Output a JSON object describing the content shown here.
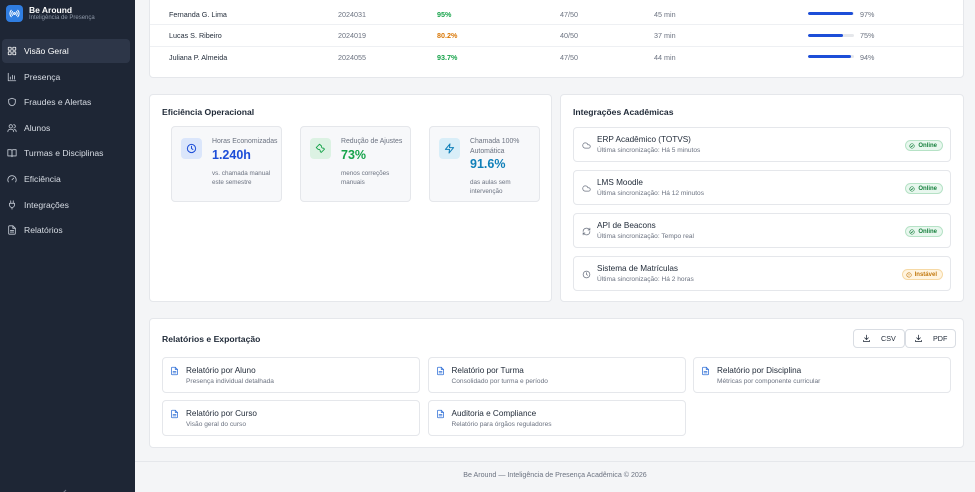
{
  "brand": {
    "name": "Be Around",
    "subtitle": "Inteligência de Presença"
  },
  "nav": [
    {
      "label": "Visão Geral",
      "icon": "grid-icon",
      "active": true
    },
    {
      "label": "Presença",
      "icon": "bar-chart-icon"
    },
    {
      "label": "Fraudes e Alertas",
      "icon": "shield-icon"
    },
    {
      "label": "Alunos",
      "icon": "users-icon"
    },
    {
      "label": "Turmas e Disciplinas",
      "icon": "book-icon"
    },
    {
      "label": "Eficiência",
      "icon": "gauge-icon"
    },
    {
      "label": "Integrações",
      "icon": "plug-icon"
    },
    {
      "label": "Relatórios",
      "icon": "file-icon"
    }
  ],
  "students": [
    {
      "name": "Fernanda G. Lima",
      "id": "2024031",
      "rate": "95%",
      "rate_color": "#16a34a",
      "attended": "47/50",
      "time": "45 min",
      "score": 0.97,
      "score_label": "97%"
    },
    {
      "name": "Lucas S. Ribeiro",
      "id": "2024019",
      "rate": "80.2%",
      "rate_color": "#d97706",
      "attended": "40/50",
      "time": "37 min",
      "score": 0.75,
      "score_label": "75%"
    },
    {
      "name": "Juliana P. Almeida",
      "id": "2024055",
      "rate": "93.7%",
      "rate_color": "#16a34a",
      "attended": "47/50",
      "time": "44 min",
      "score": 0.94,
      "score_label": "94%"
    }
  ],
  "efficiency": {
    "title": "Eficiência Operacional",
    "tiles": [
      {
        "icon": "clock-icon",
        "label": "Horas Economizadas",
        "value": "1.240h",
        "value_color": "#1d4ed8",
        "desc": "vs. chamada manual este semestre",
        "icon_bg": "#dbe6fb",
        "icon_color": "#1d4ed8"
      },
      {
        "icon": "wrench-icon",
        "label": "Redução de Ajustes",
        "value": "73%",
        "value_color": "#16a34a",
        "desc": "menos correções manuais",
        "icon_bg": "#dcf2e3",
        "icon_color": "#16a34a"
      },
      {
        "icon": "bolt-icon",
        "label": "Chamada 100% Automática",
        "value": "91.6%",
        "value_color": "#0f7fb8",
        "desc": "das aulas sem intervenção",
        "icon_bg": "#d9eef8",
        "icon_color": "#0f7fb8"
      }
    ]
  },
  "integrations": {
    "title": "Integrações Acadêmicas",
    "items": [
      {
        "icon": "cloud-icon",
        "name": "ERP Acadêmico (TOTVS)",
        "sync": "Última sincronização: Há 5 minutos",
        "status": "Online",
        "state": "ok"
      },
      {
        "icon": "cloud-icon",
        "name": "LMS Moodle",
        "sync": "Última sincronização: Há 12 minutos",
        "status": "Online",
        "state": "ok"
      },
      {
        "icon": "refresh-icon",
        "name": "API de Beacons",
        "sync": "Última sincronização: Tempo real",
        "status": "Online",
        "state": "ok"
      },
      {
        "icon": "clock-icon",
        "name": "Sistema de Matrículas",
        "sync": "Última sincronização: Há 2 horas",
        "status": "Instável",
        "state": "warn"
      }
    ]
  },
  "reports": {
    "title": "Relatórios e Exportação",
    "export_csv": "CSV",
    "export_pdf": "PDF",
    "items": [
      {
        "title": "Relatório por Aluno",
        "subtitle": "Presença individual detalhada"
      },
      {
        "title": "Relatório por Turma",
        "subtitle": "Consolidado por turma e período"
      },
      {
        "title": "Relatório por Disciplina",
        "subtitle": "Métricas por componente curricular"
      },
      {
        "title": "Relatório por Curso",
        "subtitle": "Visão geral do curso"
      },
      {
        "title": "Auditoria e Compliance",
        "subtitle": "Relatório para órgãos reguladores"
      }
    ]
  },
  "footer": "Be Around — Inteligência de Presença Acadêmica © 2026"
}
